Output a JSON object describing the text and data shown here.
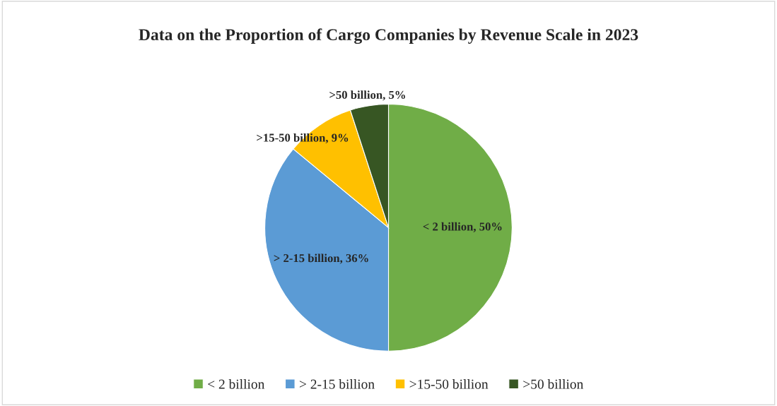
{
  "chart_data": {
    "type": "pie",
    "title": "Data on the Proportion of Cargo Companies by Revenue Scale in 2023",
    "categories": [
      "< 2 billion",
      "> 2-15 billion",
      ">15-50 billion",
      ">50 billion"
    ],
    "values": [
      50,
      36,
      9,
      5
    ],
    "colors": [
      "#70ad47",
      "#5b9bd5",
      "#ffc000",
      "#375623"
    ],
    "value_labels": [
      "< 2 billion, 50%",
      "> 2-15 billion, 36%",
      ">15-50 billion, 9%",
      ">50 billion, 5%"
    ],
    "legend": "bottom"
  }
}
